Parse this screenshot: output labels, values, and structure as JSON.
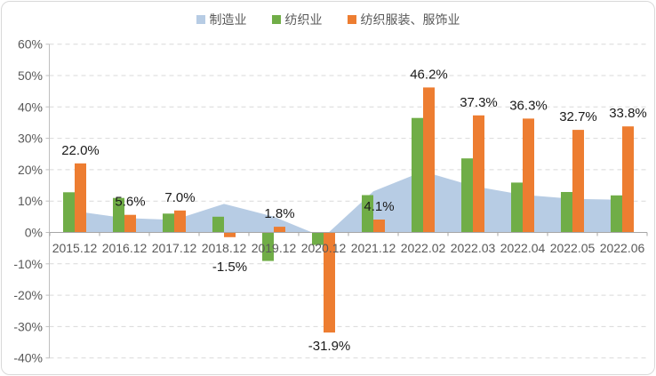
{
  "chart_data": {
    "type": "combo-area-bar",
    "title": "",
    "categories": [
      "2015.12",
      "2016.12",
      "2017.12",
      "2018.12",
      "2019.12",
      "2020.12",
      "2021.12",
      "2022.02",
      "2022.03",
      "2022.04",
      "2022.05",
      "2022.06"
    ],
    "series": [
      {
        "name": "制造业",
        "chart_type": "area",
        "color": "#B7CCE4",
        "values": [
          6.8,
          4.6,
          4.0,
          9.1,
          5.0,
          -1.5,
          13.1,
          19.5,
          14.8,
          12.0,
          10.7,
          10.4
        ]
      },
      {
        "name": "纺织业",
        "chart_type": "bar",
        "color": "#70AD47",
        "values": [
          12.8,
          11.0,
          6.0,
          5.0,
          -9.1,
          -4.0,
          11.9,
          36.5,
          23.6,
          15.9,
          12.9,
          11.8
        ]
      },
      {
        "name": "纺织服装、服饰业",
        "chart_type": "bar",
        "color": "#ED7D31",
        "values": [
          22.0,
          5.6,
          7.0,
          -1.5,
          1.8,
          -31.9,
          4.1,
          46.2,
          37.3,
          36.3,
          32.7,
          33.8
        ],
        "data_labels": [
          "22.0%",
          "5.6%",
          "7.0%",
          "-1.5%",
          "1.8%",
          "-31.9%",
          "4.1%",
          "46.2%",
          "37.3%",
          "36.3%",
          "32.7%",
          "33.8%"
        ]
      }
    ],
    "ylim": [
      -40,
      60
    ],
    "ytick_step": 10,
    "ytick_labels": [
      "60%",
      "50%",
      "40%",
      "30%",
      "20%",
      "10%",
      "0%",
      "-10%",
      "-20%",
      "-30%",
      "-40%"
    ],
    "grid": "horizontal-dashed",
    "legend_position": "top-center",
    "axis_text_color": "#595959",
    "data_label_color": "#1a1a1a"
  }
}
